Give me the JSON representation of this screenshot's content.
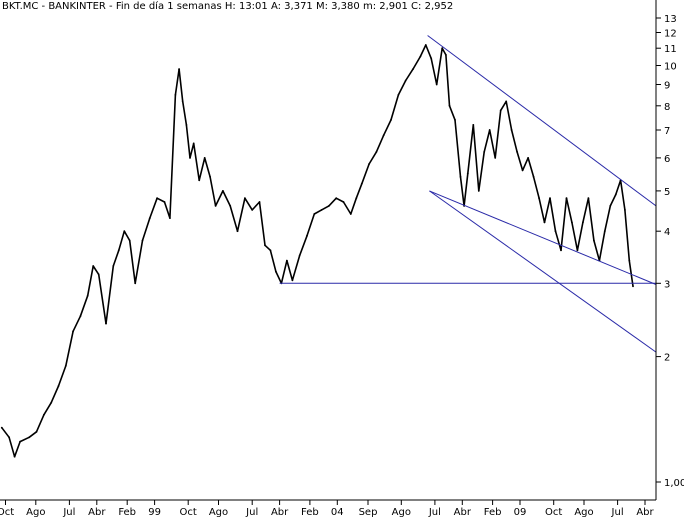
{
  "header": {
    "text": "BKT.MC - BANKINTER - Fin de día 1 semanas  H: 13:01  A: 3,371  M: 3,380  m: 2,901  C: 2,952"
  },
  "colors": {
    "background": "#ffffff",
    "price": "#000000",
    "trendlines": "#2a2aa8",
    "axis": "#000000"
  },
  "chart_data": {
    "type": "line",
    "title": "BKT.MC - BANKINTER - Fin de día 1 semanas",
    "quote": {
      "H": "13:01",
      "A": "3,371",
      "M": "3,380",
      "m": "2,901",
      "C": "2,952"
    },
    "y_scale": "log",
    "ylim": [
      1.0,
      13.5
    ],
    "y_ticks": [
      {
        "value": 13,
        "label": "13"
      },
      {
        "value": 12,
        "label": "12"
      },
      {
        "value": 11,
        "label": "11"
      },
      {
        "value": 10,
        "label": "10"
      },
      {
        "value": 9,
        "label": "9"
      },
      {
        "value": 8,
        "label": "8"
      },
      {
        "value": 7,
        "label": "7"
      },
      {
        "value": 6,
        "label": "6"
      },
      {
        "value": 5,
        "label": "5"
      },
      {
        "value": 4,
        "label": "4"
      },
      {
        "value": 3,
        "label": "3"
      },
      {
        "value": 2,
        "label": "2"
      },
      {
        "value": 1,
        "label": "1,00"
      }
    ],
    "x_ticks": [
      {
        "t": 1996.75,
        "label": "Oct"
      },
      {
        "t": 1997.58,
        "label": "Ago"
      },
      {
        "t": 1998.5,
        "label": "Jul"
      },
      {
        "t": 1999.25,
        "label": "Abr"
      },
      {
        "t": 2000.08,
        "label": "Feb"
      },
      {
        "t": 2000.83,
        "label": "99"
      },
      {
        "t": 2001.75,
        "label": "Oct"
      },
      {
        "t": 2002.58,
        "label": "Ago"
      },
      {
        "t": 2003.5,
        "label": "Jul"
      },
      {
        "t": 2004.25,
        "label": "Abr"
      },
      {
        "t": 2005.08,
        "label": "Feb"
      },
      {
        "t": 2005.83,
        "label": "04"
      },
      {
        "t": 2006.67,
        "label": "Sep"
      },
      {
        "t": 2007.58,
        "label": "Ago"
      },
      {
        "t": 2008.5,
        "label": "Jul"
      },
      {
        "t": 2009.25,
        "label": "Abr"
      },
      {
        "t": 2010.08,
        "label": "Feb"
      },
      {
        "t": 2010.83,
        "label": "09"
      },
      {
        "t": 2011.75,
        "label": "Oct"
      },
      {
        "t": 2012.58,
        "label": "Ago"
      },
      {
        "t": 2013.5,
        "label": "Jul"
      },
      {
        "t": 2014.25,
        "label": "Abr"
      }
    ],
    "xlim": [
      1996.6,
      2014.55
    ],
    "series": [
      {
        "values": [
          [
            1996.65,
            1.35
          ],
          [
            1996.85,
            1.28
          ],
          [
            1997.0,
            1.15
          ],
          [
            1997.15,
            1.25
          ],
          [
            1997.4,
            1.28
          ],
          [
            1997.6,
            1.32
          ],
          [
            1997.8,
            1.45
          ],
          [
            1998.0,
            1.55
          ],
          [
            1998.2,
            1.7
          ],
          [
            1998.4,
            1.9
          ],
          [
            1998.6,
            2.3
          ],
          [
            1998.8,
            2.5
          ],
          [
            1999.0,
            2.8
          ],
          [
            1999.15,
            3.3
          ],
          [
            1999.3,
            3.15
          ],
          [
            1999.5,
            2.4
          ],
          [
            1999.7,
            3.3
          ],
          [
            1999.85,
            3.6
          ],
          [
            2000.0,
            4.0
          ],
          [
            2000.15,
            3.8
          ],
          [
            2000.3,
            3.0
          ],
          [
            2000.5,
            3.8
          ],
          [
            2000.7,
            4.3
          ],
          [
            2000.9,
            4.8
          ],
          [
            2001.1,
            4.7
          ],
          [
            2001.25,
            4.3
          ],
          [
            2001.4,
            8.5
          ],
          [
            2001.5,
            9.8
          ],
          [
            2001.6,
            8.2
          ],
          [
            2001.7,
            7.2
          ],
          [
            2001.8,
            6.0
          ],
          [
            2001.9,
            6.5
          ],
          [
            2002.05,
            5.3
          ],
          [
            2002.2,
            6.0
          ],
          [
            2002.35,
            5.4
          ],
          [
            2002.5,
            4.6
          ],
          [
            2002.7,
            5.0
          ],
          [
            2002.9,
            4.6
          ],
          [
            2003.1,
            4.0
          ],
          [
            2003.3,
            4.8
          ],
          [
            2003.5,
            4.5
          ],
          [
            2003.7,
            4.7
          ],
          [
            2003.85,
            3.7
          ],
          [
            2004.0,
            3.6
          ],
          [
            2004.15,
            3.2
          ],
          [
            2004.3,
            3.0
          ],
          [
            2004.45,
            3.4
          ],
          [
            2004.6,
            3.05
          ],
          [
            2004.8,
            3.5
          ],
          [
            2005.0,
            3.9
          ],
          [
            2005.2,
            4.4
          ],
          [
            2005.4,
            4.5
          ],
          [
            2005.6,
            4.6
          ],
          [
            2005.8,
            4.8
          ],
          [
            2006.0,
            4.7
          ],
          [
            2006.2,
            4.4
          ],
          [
            2006.35,
            4.8
          ],
          [
            2006.5,
            5.2
          ],
          [
            2006.7,
            5.8
          ],
          [
            2006.9,
            6.2
          ],
          [
            2007.1,
            6.8
          ],
          [
            2007.3,
            7.4
          ],
          [
            2007.5,
            8.5
          ],
          [
            2007.7,
            9.2
          ],
          [
            2007.9,
            9.8
          ],
          [
            2008.1,
            10.5
          ],
          [
            2008.25,
            11.2
          ],
          [
            2008.4,
            10.4
          ],
          [
            2008.55,
            9.0
          ],
          [
            2008.7,
            11.0
          ],
          [
            2008.8,
            10.6
          ],
          [
            2008.9,
            8.0
          ],
          [
            2009.05,
            7.4
          ],
          [
            2009.2,
            5.4
          ],
          [
            2009.3,
            4.6
          ],
          [
            2009.4,
            5.5
          ],
          [
            2009.55,
            7.2
          ],
          [
            2009.7,
            5.0
          ],
          [
            2009.85,
            6.2
          ],
          [
            2010.0,
            7.0
          ],
          [
            2010.15,
            6.0
          ],
          [
            2010.3,
            7.8
          ],
          [
            2010.45,
            8.2
          ],
          [
            2010.6,
            7.0
          ],
          [
            2010.75,
            6.2
          ],
          [
            2010.9,
            5.6
          ],
          [
            2011.05,
            6.0
          ],
          [
            2011.2,
            5.4
          ],
          [
            2011.35,
            4.8
          ],
          [
            2011.5,
            4.2
          ],
          [
            2011.65,
            4.8
          ],
          [
            2011.8,
            4.0
          ],
          [
            2011.95,
            3.6
          ],
          [
            2012.1,
            4.8
          ],
          [
            2012.25,
            4.2
          ],
          [
            2012.4,
            3.6
          ],
          [
            2012.55,
            4.2
          ],
          [
            2012.7,
            4.8
          ],
          [
            2012.85,
            3.8
          ],
          [
            2013.0,
            3.4
          ],
          [
            2013.15,
            4.0
          ],
          [
            2013.3,
            4.6
          ],
          [
            2013.45,
            4.9
          ],
          [
            2013.58,
            5.3
          ],
          [
            2013.7,
            4.5
          ],
          [
            2013.82,
            3.4
          ],
          [
            2013.92,
            2.95
          ]
        ]
      }
    ],
    "trendlines": [
      {
        "from": [
          2004.25,
          3.0
        ],
        "to": [
          2014.55,
          3.0
        ]
      },
      {
        "from": [
          2008.3,
          11.8
        ],
        "to": [
          2014.55,
          4.6
        ]
      },
      {
        "from": [
          2008.35,
          5.0
        ],
        "to": [
          2014.55,
          2.98
        ]
      },
      {
        "from": [
          2008.35,
          5.0
        ],
        "to": [
          2014.55,
          2.05
        ]
      }
    ],
    "grid": false,
    "legend": "none"
  }
}
